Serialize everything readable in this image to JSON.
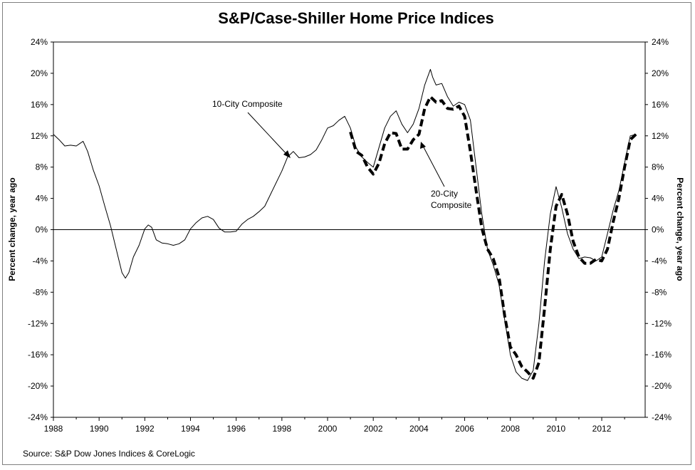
{
  "chart_data": {
    "type": "line",
    "title": "S&P/Case-Shiller Home Price Indices",
    "ylabel_left": "Percent change, year ago",
    "ylabel_right": "Percent change, year ago",
    "ylim": [
      -24,
      24
    ],
    "xlim": [
      1988,
      2013.9
    ],
    "y_ticks": [
      "24%",
      "20%",
      "16%",
      "12%",
      "8%",
      "4%",
      "0%",
      "-4%",
      "-8%",
      "-12%",
      "-16%",
      "-20%",
      "-24%"
    ],
    "x_ticks": [
      "1988",
      "1990",
      "1992",
      "1994",
      "1996",
      "1998",
      "2000",
      "2002",
      "2004",
      "2006",
      "2008",
      "2010",
      "2012"
    ],
    "grid": false,
    "zero_line": true,
    "source": "Source: S&P Dow Jones Indices & CoreLogic",
    "annotations": [
      {
        "text": "10-City Composite",
        "series": "10-City Composite"
      },
      {
        "text_lines": [
          "20-City",
          "Composite"
        ],
        "series": "20-City Composite"
      }
    ],
    "series": [
      {
        "name": "10-City Composite",
        "style": "solid",
        "x": [
          1988.0,
          1988.25,
          1988.5,
          1988.75,
          1989.0,
          1989.15,
          1989.3,
          1989.5,
          1989.75,
          1990.0,
          1990.25,
          1990.5,
          1990.75,
          1991.0,
          1991.15,
          1991.3,
          1991.5,
          1991.75,
          1992.0,
          1992.15,
          1992.3,
          1992.5,
          1992.75,
          1993.0,
          1993.25,
          1993.5,
          1993.75,
          1994.0,
          1994.25,
          1994.5,
          1994.75,
          1995.0,
          1995.25,
          1995.5,
          1995.75,
          1996.0,
          1996.25,
          1996.5,
          1996.75,
          1997.0,
          1997.25,
          1997.5,
          1997.75,
          1998.0,
          1998.25,
          1998.5,
          1998.75,
          1999.0,
          1999.25,
          1999.5,
          1999.75,
          2000.0,
          2000.25,
          2000.5,
          2000.75,
          2001.0,
          2001.25,
          2001.5,
          2001.75,
          2002.0,
          2002.25,
          2002.5,
          2002.75,
          2003.0,
          2003.25,
          2003.5,
          2003.75,
          2004.0,
          2004.25,
          2004.5,
          2004.6,
          2004.75,
          2005.0,
          2005.25,
          2005.5,
          2005.75,
          2006.0,
          2006.25,
          2006.5,
          2006.75,
          2007.0,
          2007.25,
          2007.5,
          2007.75,
          2008.0,
          2008.25,
          2008.5,
          2008.75,
          2009.0,
          2009.25,
          2009.5,
          2009.75,
          2010.0,
          2010.25,
          2010.5,
          2010.75,
          2011.0,
          2011.25,
          2011.5,
          2011.75,
          2012.0,
          2012.25,
          2012.5,
          2012.75,
          2013.0,
          2013.25,
          2013.5
        ],
        "y": [
          12.2,
          11.5,
          10.7,
          10.8,
          10.7,
          11.0,
          11.3,
          10.0,
          7.6,
          5.6,
          3.0,
          0.5,
          -2.5,
          -5.5,
          -6.2,
          -5.5,
          -3.5,
          -2.0,
          0.1,
          0.6,
          0.3,
          -1.3,
          -1.7,
          -1.8,
          -2.0,
          -1.8,
          -1.3,
          0.1,
          0.9,
          1.5,
          1.7,
          1.3,
          0.2,
          -0.3,
          -0.3,
          -0.2,
          0.7,
          1.3,
          1.7,
          2.3,
          3.0,
          4.5,
          6.0,
          7.5,
          9.3,
          10.0,
          9.2,
          9.3,
          9.6,
          10.2,
          11.5,
          13.0,
          13.3,
          14.0,
          14.5,
          13.0,
          10.5,
          9.3,
          8.6,
          8.0,
          10.5,
          13.0,
          14.5,
          15.2,
          13.5,
          12.4,
          13.5,
          15.5,
          18.5,
          20.5,
          19.5,
          18.5,
          18.7,
          17.0,
          15.8,
          16.3,
          16.0,
          14.0,
          8.0,
          2.0,
          -2.5,
          -4.5,
          -7.0,
          -11.5,
          -16.0,
          -18.2,
          -19.0,
          -19.3,
          -18.0,
          -12.0,
          -4.0,
          2.0,
          5.5,
          2.8,
          -0.5,
          -2.5,
          -3.7,
          -3.5,
          -3.6,
          -4.0,
          -3.5,
          -0.5,
          2.5,
          5.0,
          8.5,
          12.0,
          12.2
        ]
      },
      {
        "name": "20-City Composite",
        "style": "dashed",
        "x": [
          2001.0,
          2001.25,
          2001.5,
          2001.75,
          2002.0,
          2002.25,
          2002.5,
          2002.75,
          2003.0,
          2003.25,
          2003.5,
          2003.75,
          2004.0,
          2004.25,
          2004.5,
          2004.75,
          2005.0,
          2005.25,
          2005.5,
          2005.75,
          2006.0,
          2006.25,
          2006.5,
          2006.75,
          2007.0,
          2007.25,
          2007.5,
          2007.75,
          2008.0,
          2008.25,
          2008.5,
          2008.75,
          2009.0,
          2009.25,
          2009.5,
          2009.75,
          2010.0,
          2010.25,
          2010.5,
          2010.75,
          2011.0,
          2011.25,
          2011.5,
          2011.75,
          2012.0,
          2012.25,
          2012.5,
          2012.75,
          2013.0,
          2013.25,
          2013.5
        ],
        "y": [
          12.5,
          10.0,
          9.5,
          8.0,
          7.1,
          8.5,
          11.0,
          12.4,
          12.3,
          10.3,
          10.3,
          11.5,
          12.2,
          15.5,
          17.0,
          16.3,
          16.5,
          15.5,
          15.4,
          15.8,
          14.5,
          10.0,
          5.0,
          0.2,
          -2.5,
          -3.7,
          -6.0,
          -11.0,
          -15.0,
          -16.0,
          -17.5,
          -18.2,
          -19.0,
          -17.0,
          -10.0,
          -2.5,
          3.0,
          4.5,
          2.0,
          -1.5,
          -3.5,
          -4.3,
          -4.3,
          -3.8,
          -4.0,
          -2.5,
          1.0,
          4.0,
          8.0,
          11.5,
          12.2
        ]
      }
    ]
  }
}
